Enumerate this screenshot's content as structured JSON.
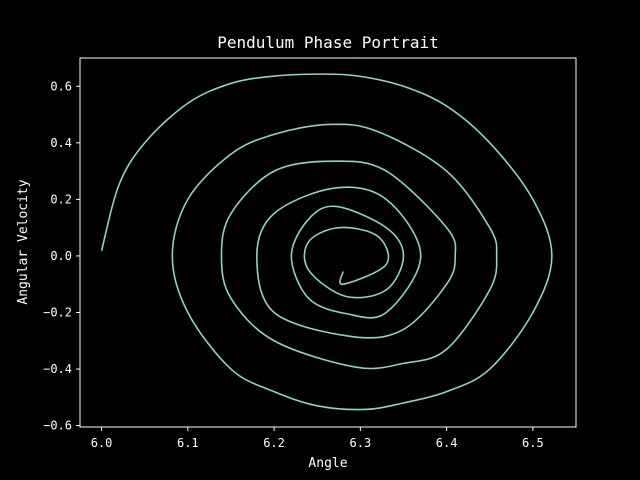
{
  "chart_data": {
    "type": "line",
    "title": "Pendulum Phase Portrait",
    "xlabel": "Angle",
    "ylabel": "Angular Velocity",
    "xlim": [
      5.975,
      6.55
    ],
    "ylim": [
      -0.605,
      0.7
    ],
    "xticks": [
      6.0,
      6.1,
      6.2,
      6.3,
      6.4,
      6.5
    ],
    "xtick_labels": [
      "6.0",
      "6.1",
      "6.2",
      "6.3",
      "6.4",
      "6.5"
    ],
    "yticks": [
      -0.6,
      -0.4,
      -0.2,
      0.0,
      0.2,
      0.4,
      0.6
    ],
    "ytick_labels": [
      "−0.6",
      "−0.4",
      "−0.2",
      "0.0",
      "0.2",
      "0.4",
      "0.6"
    ],
    "grid": false,
    "series": [
      {
        "color": "#8dd3c7",
        "x": [
          6.0,
          6.02,
          6.05,
          6.1,
          6.15,
          6.2,
          6.258,
          6.3,
          6.35,
          6.4,
          6.45,
          6.5,
          6.522,
          6.5,
          6.45,
          6.4,
          6.35,
          6.305,
          6.25,
          6.2,
          6.15,
          6.1,
          6.082,
          6.1,
          6.15,
          6.2,
          6.264,
          6.32,
          6.4,
          6.45,
          6.458,
          6.45,
          6.4,
          6.35,
          6.294,
          6.2,
          6.15,
          6.139,
          6.15,
          6.2,
          6.269,
          6.33,
          6.4,
          6.41,
          6.4,
          6.35,
          6.29,
          6.2,
          6.18,
          6.2,
          6.27,
          6.33,
          6.37,
          6.33,
          6.285,
          6.24,
          6.22,
          6.24,
          6.272,
          6.33,
          6.35,
          6.33,
          6.283,
          6.24,
          6.24,
          6.275,
          6.32,
          6.33,
          6.28,
          6.28
        ],
        "y": [
          0.018,
          0.25,
          0.4,
          0.54,
          0.61,
          0.636,
          0.643,
          0.635,
          0.6,
          0.53,
          0.4,
          0.2,
          0.0,
          -0.2,
          -0.4,
          -0.48,
          -0.52,
          -0.543,
          -0.53,
          -0.48,
          -0.4,
          -0.2,
          0.0,
          0.2,
          0.36,
          0.43,
          0.465,
          0.44,
          0.3,
          0.1,
          0.0,
          -0.12,
          -0.33,
          -0.38,
          -0.393,
          -0.3,
          -0.15,
          0.0,
          0.15,
          0.3,
          0.335,
          0.3,
          0.1,
          0.0,
          -0.1,
          -0.26,
          -0.285,
          -0.2,
          0.0,
          0.15,
          0.24,
          0.2,
          0.0,
          -0.2,
          -0.205,
          -0.15,
          0.0,
          0.13,
          0.175,
          0.1,
          0.0,
          -0.12,
          -0.143,
          -0.05,
          0.05,
          0.1,
          0.07,
          -0.03,
          -0.1,
          -0.055
        ]
      }
    ]
  }
}
